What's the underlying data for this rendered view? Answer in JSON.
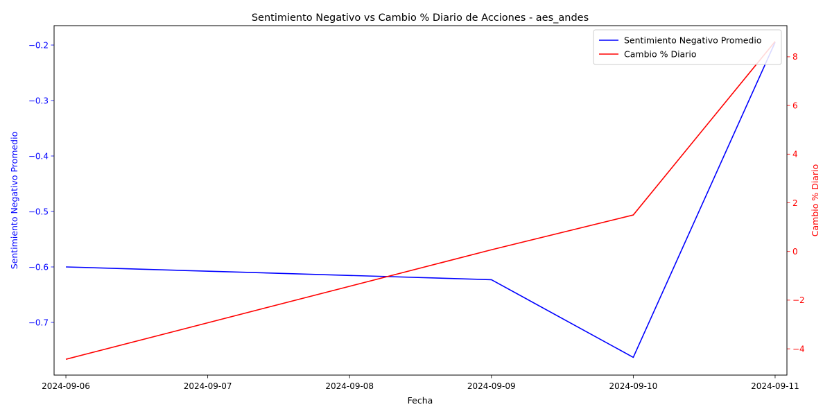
{
  "chart_data": {
    "type": "line",
    "title": "Sentimiento Negativo vs Cambio % Diario de Acciones - aes_andes",
    "xlabel": "Fecha",
    "ylabel_left": "Sentimiento Negativo Promedio",
    "ylabel_right": "Cambio % Diario",
    "x": [
      "2024-09-06",
      "2024-09-07",
      "2024-09-08",
      "2024-09-09",
      "2024-09-10",
      "2024-09-11"
    ],
    "x_ticks": [
      "2024-09-06",
      "2024-09-07",
      "2024-09-08",
      "2024-09-09",
      "2024-09-10",
      "2024-09-11"
    ],
    "xlim": [
      "2024-09-05T22:00",
      "2024-09-11T02:00"
    ],
    "left_axis": {
      "ylim": [
        -0.795,
        -0.165
      ],
      "ticks": [
        -0.7,
        -0.6,
        -0.5,
        -0.4,
        -0.3,
        -0.2
      ],
      "tick_labels": [
        "−0.7",
        "−0.6",
        "−0.5",
        "−0.4",
        "−0.3",
        "−0.2"
      ],
      "color": "#0000ff"
    },
    "right_axis": {
      "ylim": [
        -5.08,
        9.28
      ],
      "ticks": [
        -4,
        -2,
        0,
        2,
        4,
        6,
        8
      ],
      "tick_labels": [
        "−4",
        "−2",
        "0",
        "2",
        "4",
        "6",
        "8"
      ],
      "color": "#ff0000"
    },
    "series": [
      {
        "name": "Sentimiento Negativo Promedio",
        "axis": "left",
        "color": "#0000ff",
        "points": [
          {
            "x": "2024-09-06",
            "y": -0.6
          },
          {
            "x": "2024-09-09",
            "y": -0.623
          },
          {
            "x": "2024-09-10",
            "y": -0.763
          },
          {
            "x": "2024-09-11",
            "y": -0.195
          }
        ]
      },
      {
        "name": "Cambio % Diario",
        "axis": "right",
        "color": "#ff0000",
        "points": [
          {
            "x": "2024-09-06",
            "y": -4.43
          },
          {
            "x": "2024-09-09",
            "y": 0.07
          },
          {
            "x": "2024-09-10",
            "y": 1.5
          },
          {
            "x": "2024-09-11",
            "y": 8.63
          }
        ]
      }
    ],
    "legend_position": "upper-right",
    "grid": false
  }
}
